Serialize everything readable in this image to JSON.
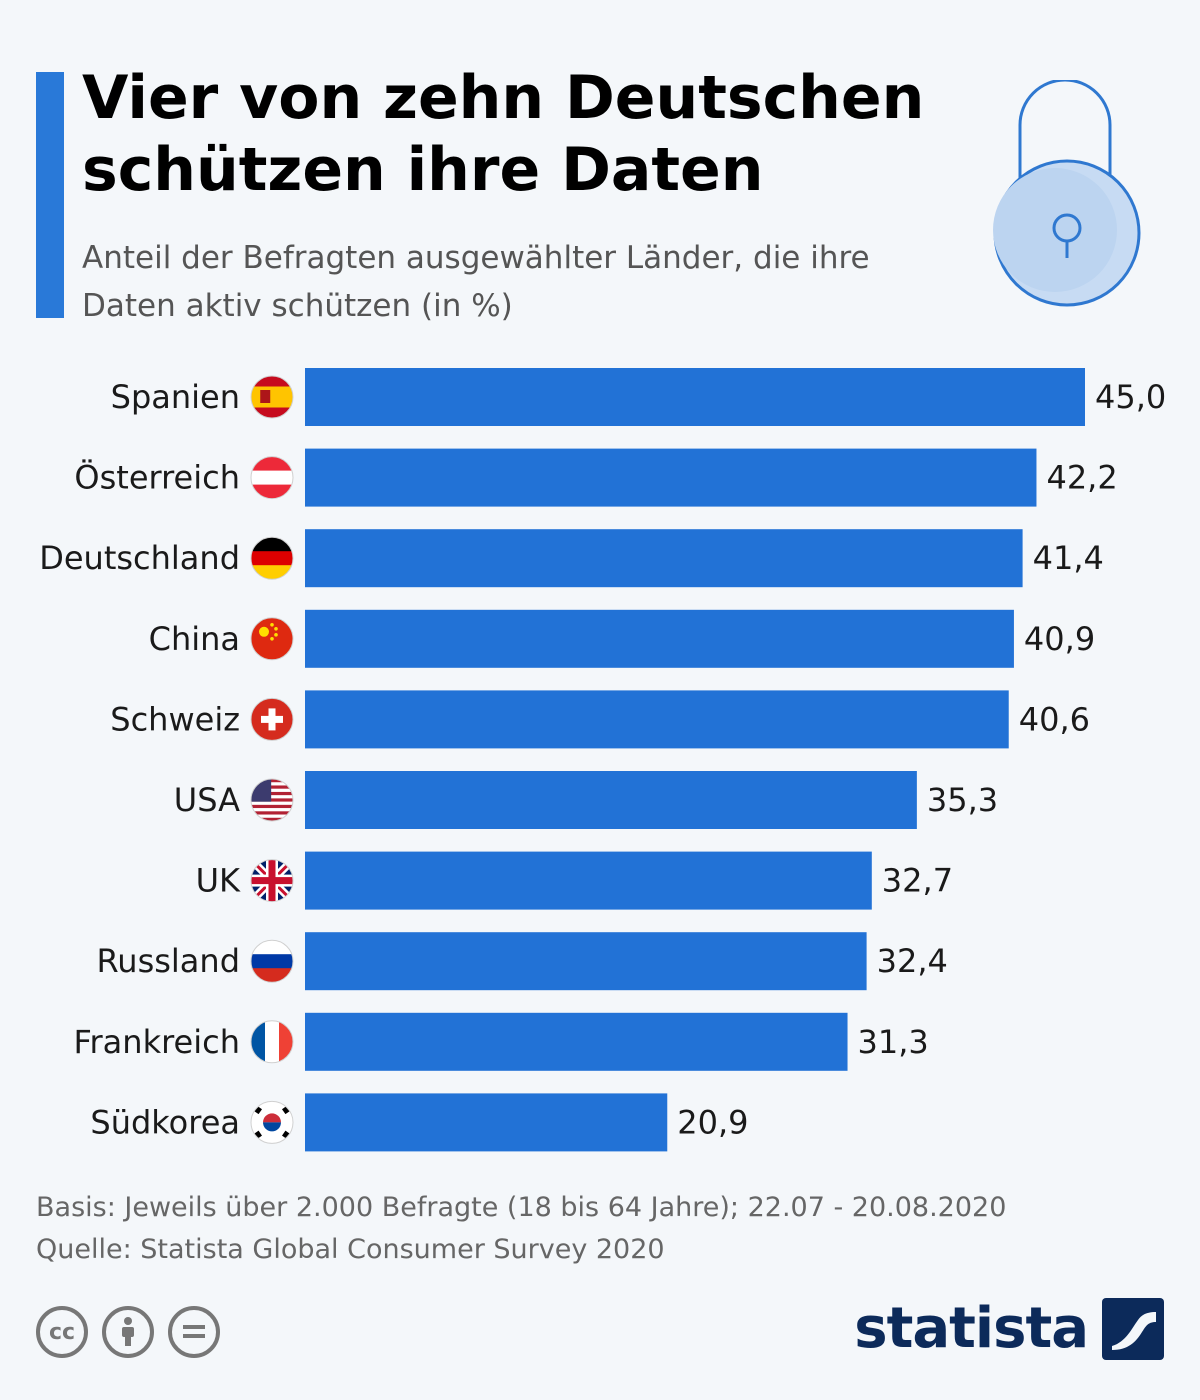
{
  "header": {
    "title": "Vier von zehn Deutschen schützen ihre Daten",
    "subtitle": "Anteil der Befragten ausgewählter Länder, die ihre Daten aktiv schützen (in %)"
  },
  "colors": {
    "accent": "#2979d8",
    "bar": "#2272d6",
    "lock": "#2f78d0",
    "logo": "#0c2a5a"
  },
  "icons": [
    "padlock-icon",
    "cc-icon",
    "by-icon",
    "nd-icon",
    "statista-logo-icon"
  ],
  "chart_data": {
    "type": "bar",
    "orientation": "horizontal",
    "categories": [
      "Spanien",
      "Österreich",
      "Deutschland",
      "China",
      "Schweiz",
      "USA",
      "UK",
      "Russland",
      "Frankreich",
      "Südkorea"
    ],
    "flags": [
      "es",
      "at",
      "de",
      "cn",
      "ch",
      "us",
      "uk",
      "ru",
      "fr",
      "kr"
    ],
    "values": [
      45.0,
      42.2,
      41.4,
      40.9,
      40.6,
      35.3,
      32.7,
      32.4,
      31.3,
      20.9
    ],
    "value_labels": [
      "45,0",
      "42,2",
      "41,4",
      "40,9",
      "40,6",
      "35,3",
      "32,7",
      "32,4",
      "31,3",
      "20,9"
    ],
    "xlim": [
      0,
      45
    ],
    "grid": false
  },
  "footer": {
    "basis": "Basis: Jeweils über 2.000 Befragte (18 bis 64 Jahre); 22.07 - 20.08.2020",
    "source": "Quelle: Statista Global Consumer Survey 2020",
    "logo_text": "statista"
  }
}
